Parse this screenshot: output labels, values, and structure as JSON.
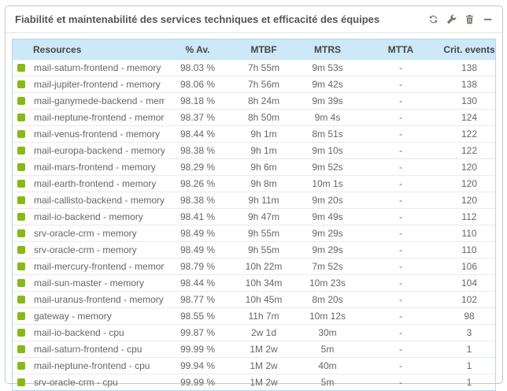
{
  "widget": {
    "title": "Fiabilité et maintenabilité des services techniques et efficacité des équipes",
    "toolbar_icons": [
      "refresh-icon",
      "wrench-icon",
      "trash-icon",
      "collapse-icon"
    ],
    "accent_colors": {
      "status_ok": "#88b917",
      "header_bg": "#cde8f6",
      "table_border": "#b5d7ea",
      "icon": "#7b756b"
    }
  },
  "table": {
    "columns": [
      "Resources",
      "% Av.",
      "MTBF",
      "MTRS",
      "MTTA",
      "Crit. events"
    ],
    "status_ok_color": "#88b917",
    "rows": [
      {
        "status": "ok",
        "resource": "mail-saturn-frontend - memory",
        "availability": "98.03 %",
        "mtbf": "7h 55m",
        "mtrs": "9m 53s",
        "mtta": "-",
        "crit_events": "138"
      },
      {
        "status": "ok",
        "resource": "mail-jupiter-frontend - memory",
        "availability": "98.06 %",
        "mtbf": "7h 56m",
        "mtrs": "9m 42s",
        "mtta": "-",
        "crit_events": "138"
      },
      {
        "status": "ok",
        "resource": "mail-ganymede-backend - memory",
        "availability": "98.18 %",
        "mtbf": "8h 24m",
        "mtrs": "9m 39s",
        "mtta": "-",
        "crit_events": "130"
      },
      {
        "status": "ok",
        "resource": "mail-neptune-frontend - memory",
        "availability": "98.37 %",
        "mtbf": "8h 50m",
        "mtrs": "9m 4s",
        "mtta": "-",
        "crit_events": "124"
      },
      {
        "status": "ok",
        "resource": "mail-venus-frontend - memory",
        "availability": "98.44 %",
        "mtbf": "9h 1m",
        "mtrs": "8m 51s",
        "mtta": "-",
        "crit_events": "122"
      },
      {
        "status": "ok",
        "resource": "mail-europa-backend - memory",
        "availability": "98.38 %",
        "mtbf": "9h 1m",
        "mtrs": "9m 10s",
        "mtta": "-",
        "crit_events": "122"
      },
      {
        "status": "ok",
        "resource": "mail-mars-frontend - memory",
        "availability": "98.29 %",
        "mtbf": "9h 6m",
        "mtrs": "9m 52s",
        "mtta": "-",
        "crit_events": "120"
      },
      {
        "status": "ok",
        "resource": "mail-earth-frontend - memory",
        "availability": "98.26 %",
        "mtbf": "9h 8m",
        "mtrs": "10m 1s",
        "mtta": "-",
        "crit_events": "120"
      },
      {
        "status": "ok",
        "resource": "mail-callisto-backend - memory",
        "availability": "98.38 %",
        "mtbf": "9h 11m",
        "mtrs": "9m 20s",
        "mtta": "-",
        "crit_events": "120"
      },
      {
        "status": "ok",
        "resource": "mail-io-backend - memory",
        "availability": "98.41 %",
        "mtbf": "9h 47m",
        "mtrs": "9m 49s",
        "mtta": "-",
        "crit_events": "112"
      },
      {
        "status": "ok",
        "resource": "srv-oracle-crm - memory",
        "availability": "98.49 %",
        "mtbf": "9h 55m",
        "mtrs": "9m 29s",
        "mtta": "-",
        "crit_events": "110"
      },
      {
        "status": "ok",
        "resource": "srv-oracle-crm - memory",
        "availability": "98.49 %",
        "mtbf": "9h 55m",
        "mtrs": "9m 29s",
        "mtta": "-",
        "crit_events": "110"
      },
      {
        "status": "ok",
        "resource": "mail-mercury-frontend - memory",
        "availability": "98.79 %",
        "mtbf": "10h 22m",
        "mtrs": "7m 52s",
        "mtta": "-",
        "crit_events": "106"
      },
      {
        "status": "ok",
        "resource": "mail-sun-master - memory",
        "availability": "98.44 %",
        "mtbf": "10h 34m",
        "mtrs": "10m 23s",
        "mtta": "-",
        "crit_events": "104"
      },
      {
        "status": "ok",
        "resource": "mail-uranus-frontend - memory",
        "availability": "98.77 %",
        "mtbf": "10h 45m",
        "mtrs": "8m 20s",
        "mtta": "-",
        "crit_events": "102"
      },
      {
        "status": "ok",
        "resource": "gateway - memory",
        "availability": "98.55 %",
        "mtbf": "11h 7m",
        "mtrs": "10m 12s",
        "mtta": "-",
        "crit_events": "98"
      },
      {
        "status": "ok",
        "resource": "mail-io-backend - cpu",
        "availability": "99.87 %",
        "mtbf": "2w 1d",
        "mtrs": "30m",
        "mtta": "-",
        "crit_events": "3"
      },
      {
        "status": "ok",
        "resource": "mail-saturn-frontend - cpu",
        "availability": "99.99 %",
        "mtbf": "1M 2w",
        "mtrs": "5m",
        "mtta": "-",
        "crit_events": "1"
      },
      {
        "status": "ok",
        "resource": "mail-neptune-frontend - cpu",
        "availability": "99.94 %",
        "mtbf": "1M 2w",
        "mtrs": "40m",
        "mtta": "-",
        "crit_events": "1"
      },
      {
        "status": "ok",
        "resource": "srv-oracle-crm - cpu",
        "availability": "99.99 %",
        "mtbf": "1M 2w",
        "mtrs": "5m",
        "mtta": "-",
        "crit_events": "1"
      }
    ]
  }
}
